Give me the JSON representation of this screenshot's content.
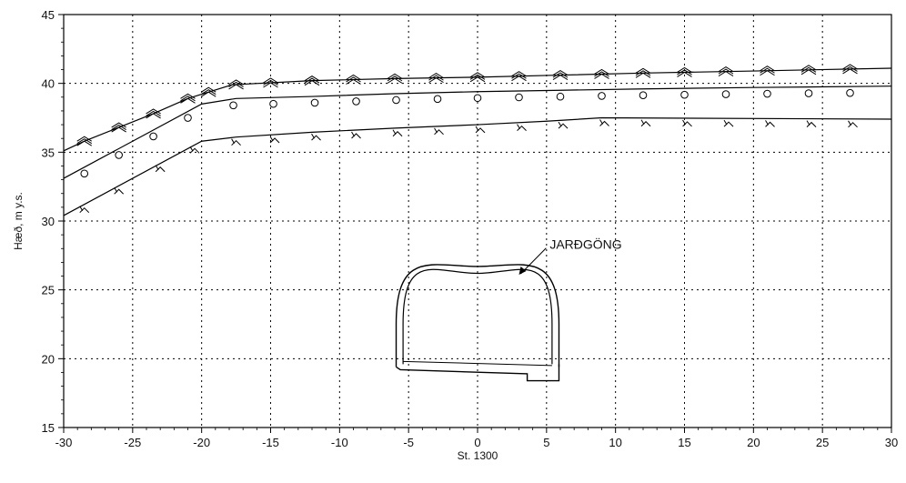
{
  "chart_data": {
    "type": "line",
    "title": "",
    "xlabel": "St. 1300",
    "ylabel": "Hæð, m y.s.",
    "xlim": [
      -30,
      30
    ],
    "ylim": [
      15,
      45
    ],
    "xticks": [
      -30,
      -25,
      -20,
      -15,
      -10,
      -5,
      0,
      5,
      10,
      15,
      20,
      25,
      30
    ],
    "yticks": [
      15,
      20,
      25,
      30,
      35,
      40,
      45
    ],
    "grid": true,
    "series": [
      {
        "style": "ground-surface",
        "x": [
          -30,
          -28.5,
          -26,
          -23.5,
          -21,
          -17.8,
          -12,
          -6,
          0,
          6,
          12,
          20,
          30
        ],
        "y": [
          35.1,
          35.8,
          36.8,
          37.8,
          38.9,
          39.9,
          40.2,
          40.35,
          40.45,
          40.6,
          40.75,
          40.9,
          41.1
        ]
      },
      {
        "style": "circles",
        "x": [
          -30,
          -20,
          -17.5,
          -12,
          -6,
          0,
          6,
          12,
          20,
          30
        ],
        "y": [
          33.1,
          38.5,
          38.9,
          39.05,
          39.25,
          39.4,
          39.5,
          39.6,
          39.7,
          39.8
        ]
      },
      {
        "style": "rock-surface",
        "x": [
          -30,
          -20,
          -17.5,
          -12,
          -6,
          0,
          5,
          9,
          30
        ],
        "y": [
          30.4,
          35.8,
          36.1,
          36.45,
          36.75,
          37.0,
          37.25,
          37.5,
          37.4
        ]
      }
    ],
    "markers": {
      "ground-surface": [
        -28.5,
        -26,
        -23.5,
        -21,
        -19.5,
        -17.5,
        -15,
        -12,
        -9,
        -6,
        -3,
        0,
        3,
        6,
        9,
        12,
        15,
        18,
        21,
        24,
        27
      ],
      "circles": [
        -28.5,
        -26,
        -23.5,
        -21,
        -17.7,
        -14.8,
        -11.8,
        -8.8,
        -5.9,
        -2.9,
        0,
        3,
        6,
        9,
        12,
        15,
        18,
        21,
        24,
        27
      ],
      "rock-surface": [
        -28.5,
        -26,
        -23,
        -20.5,
        -17.5,
        -14.7,
        -11.7,
        -8.8,
        -5.8,
        -2.8,
        0.2,
        3.2,
        6.2,
        9.2,
        12.2,
        15.2,
        18.2,
        21.2,
        24.2,
        27.2
      ]
    },
    "annotations": [
      {
        "text": "JARÐGÖNG",
        "x": 5.1,
        "y": 28.3,
        "target_x": 3.0,
        "target_y": 26.1
      }
    ]
  }
}
